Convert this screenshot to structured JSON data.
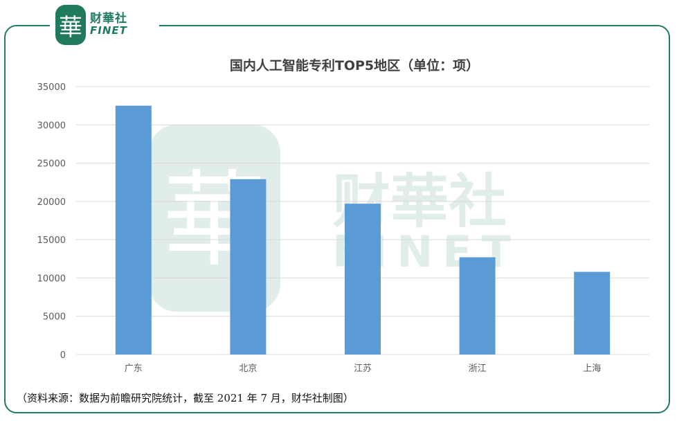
{
  "brand": {
    "mark": "華",
    "name_cn": "财華社",
    "name_en": "FINET"
  },
  "watermark": {
    "mark": "華",
    "name_cn": "财華社",
    "name_en": "FINET"
  },
  "colors": {
    "bar": "#5b9bd5",
    "brand": "#1f7a5e",
    "grid": "#d9d9d9",
    "axis_text": "#595959",
    "title": "#404040"
  },
  "chart_data": {
    "type": "bar",
    "title": "国内人工智能专利TOP5地区（单位：项）",
    "categories": [
      "广东",
      "北京",
      "江苏",
      "浙江",
      "上海"
    ],
    "values": [
      32500,
      22900,
      19700,
      12700,
      10800
    ],
    "ylim": [
      0,
      35000
    ],
    "yticks": [
      0,
      5000,
      10000,
      15000,
      20000,
      25000,
      30000,
      35000
    ],
    "grid": true,
    "legend": "none"
  },
  "source_note": "（资料来源：数据为前瞻研究院统计，截至 2021 年 7 月，财华社制图）"
}
